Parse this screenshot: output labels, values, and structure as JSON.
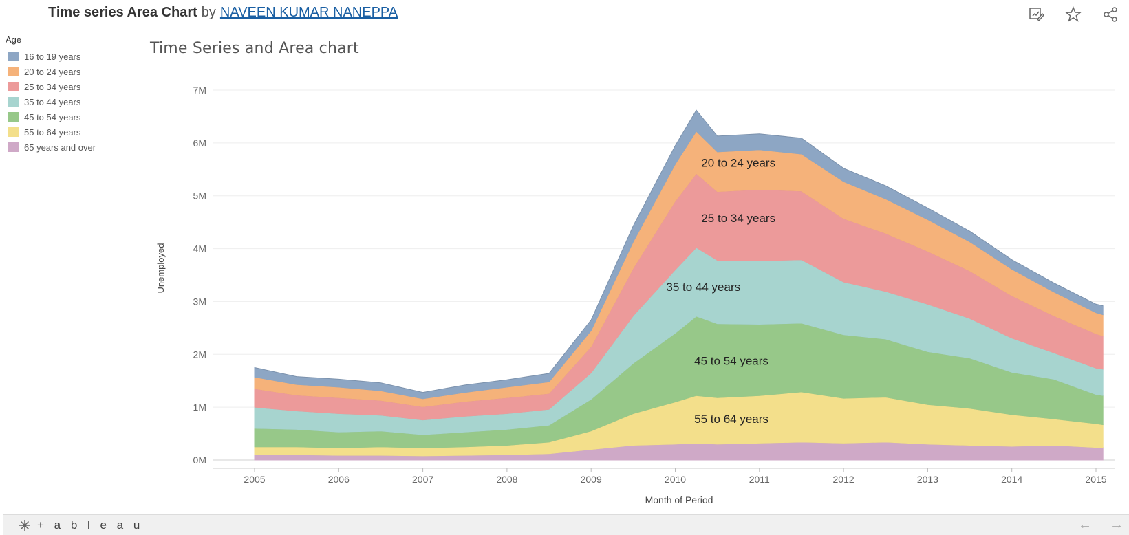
{
  "header": {
    "title": "Time series Area Chart",
    "by": "by",
    "author": "NAVEEN KUMAR NANEPPA"
  },
  "toolbar": {
    "icons": [
      "edit-icon",
      "favorite-star-icon",
      "share-icon"
    ]
  },
  "legend": {
    "title": "Age",
    "items": [
      {
        "label": "16 to 19 years",
        "color": "#8da6c4"
      },
      {
        "label": "20 to 24 years",
        "color": "#f5b27a"
      },
      {
        "label": "25 to 34 years",
        "color": "#ec9a9a"
      },
      {
        "label": "35 to 44 years",
        "color": "#a7d4cf"
      },
      {
        "label": "45 to 54 years",
        "color": "#97c889"
      },
      {
        "label": "55 to 64 years",
        "color": "#f3df8b"
      },
      {
        "label": "65 years and over",
        "color": "#cfa9c7"
      }
    ]
  },
  "footer": {
    "logo_text": "+ a b l e a u",
    "nav": [
      "back-arrow-icon",
      "forward-arrow-icon"
    ]
  },
  "chart_data": {
    "type": "area",
    "stacked": true,
    "title": "Time Series and Area chart",
    "xlabel": "Month of Period",
    "ylabel": "Unemployed",
    "ylim": [
      0,
      7000000
    ],
    "yticks": [
      "0M",
      "1M",
      "2M",
      "3M",
      "4M",
      "5M",
      "6M",
      "7M"
    ],
    "xticks": [
      "2005",
      "2006",
      "2007",
      "2008",
      "2009",
      "2010",
      "2011",
      "2012",
      "2013",
      "2014",
      "2015"
    ],
    "grid": true,
    "legend_position": "left",
    "x": [
      "2005-01",
      "2005-07",
      "2006-01",
      "2006-07",
      "2007-01",
      "2007-07",
      "2008-01",
      "2008-07",
      "2009-01",
      "2009-07",
      "2010-01",
      "2010-04",
      "2010-07",
      "2011-01",
      "2011-07",
      "2012-01",
      "2012-07",
      "2013-01",
      "2013-07",
      "2014-01",
      "2014-07",
      "2015-01",
      "2015-02"
    ],
    "series": [
      {
        "name": "65 years and over",
        "color": "#cfa9c7",
        "values": [
          0.1,
          0.1,
          0.09,
          0.09,
          0.08,
          0.09,
          0.1,
          0.12,
          0.2,
          0.28,
          0.3,
          0.32,
          0.3,
          0.32,
          0.34,
          0.32,
          0.34,
          0.3,
          0.28,
          0.26,
          0.28,
          0.24,
          0.24
        ]
      },
      {
        "name": "55 to 64 years",
        "color": "#f3df8b",
        "values": [
          0.15,
          0.15,
          0.14,
          0.16,
          0.15,
          0.16,
          0.18,
          0.22,
          0.35,
          0.6,
          0.8,
          0.9,
          0.88,
          0.9,
          0.95,
          0.85,
          0.85,
          0.75,
          0.7,
          0.6,
          0.5,
          0.45,
          0.43
        ]
      },
      {
        "name": "45 to 54 years",
        "color": "#97c889",
        "values": [
          0.35,
          0.33,
          0.3,
          0.3,
          0.25,
          0.28,
          0.3,
          0.32,
          0.6,
          0.95,
          1.3,
          1.5,
          1.4,
          1.35,
          1.3,
          1.2,
          1.1,
          1.0,
          0.95,
          0.8,
          0.75,
          0.55,
          0.55
        ]
      },
      {
        "name": "35 to 44 years",
        "color": "#a7d4cf",
        "values": [
          0.4,
          0.35,
          0.35,
          0.3,
          0.28,
          0.3,
          0.3,
          0.3,
          0.5,
          0.9,
          1.2,
          1.3,
          1.2,
          1.2,
          1.2,
          1.0,
          0.9,
          0.9,
          0.75,
          0.65,
          0.5,
          0.5,
          0.5
        ]
      },
      {
        "name": "25 to 34 years",
        "color": "#ec9a9a",
        "values": [
          0.35,
          0.3,
          0.3,
          0.28,
          0.25,
          0.28,
          0.3,
          0.3,
          0.5,
          0.9,
          1.3,
          1.4,
          1.3,
          1.35,
          1.3,
          1.2,
          1.1,
          1.0,
          0.9,
          0.8,
          0.7,
          0.65,
          0.63
        ]
      },
      {
        "name": "20 to 24 years",
        "color": "#f5b27a",
        "values": [
          0.22,
          0.2,
          0.2,
          0.18,
          0.15,
          0.17,
          0.2,
          0.22,
          0.3,
          0.5,
          0.7,
          0.8,
          0.75,
          0.75,
          0.7,
          0.7,
          0.65,
          0.6,
          0.55,
          0.5,
          0.45,
          0.4,
          0.4
        ]
      },
      {
        "name": "16 to 19 years",
        "color": "#8da6c4",
        "values": [
          0.18,
          0.15,
          0.15,
          0.15,
          0.12,
          0.14,
          0.14,
          0.16,
          0.2,
          0.3,
          0.35,
          0.4,
          0.3,
          0.3,
          0.3,
          0.25,
          0.25,
          0.22,
          0.2,
          0.18,
          0.17,
          0.16,
          0.17
        ]
      }
    ],
    "annotations": [
      {
        "text": "20 to 24 years",
        "x": "2010-10",
        "y": 5.55
      },
      {
        "text": "25 to 34 years",
        "x": "2010-10",
        "y": 4.5
      },
      {
        "text": "35 to 44 years",
        "x": "2010-05",
        "y": 3.2
      },
      {
        "text": "45 to 54 years",
        "x": "2010-09",
        "y": 1.8
      },
      {
        "text": "55 to 64 years",
        "x": "2010-09",
        "y": 0.7
      }
    ]
  }
}
